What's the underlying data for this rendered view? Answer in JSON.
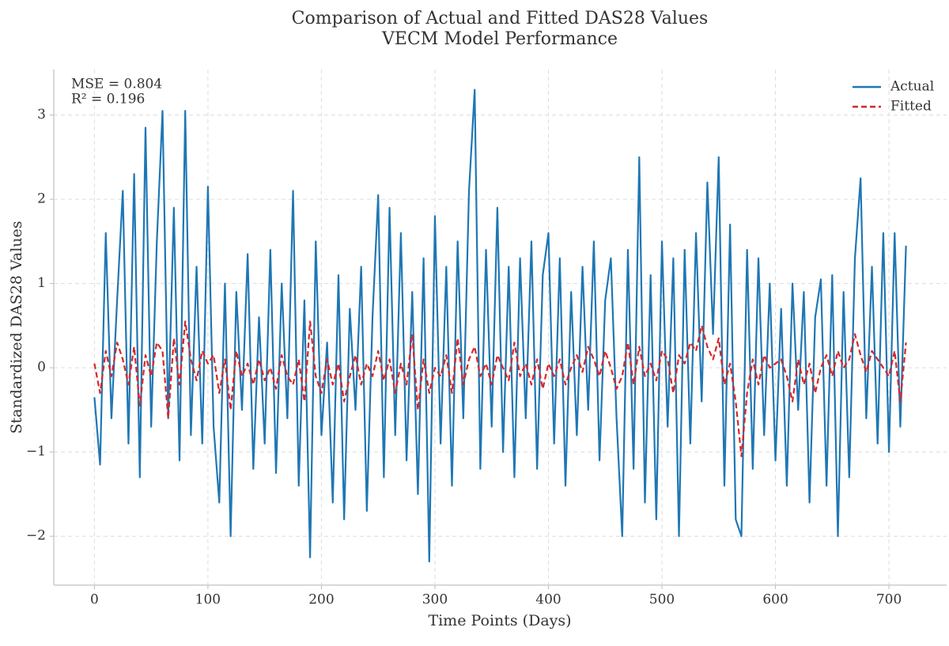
{
  "chart_data": {
    "type": "line",
    "title": "Comparison of Actual and Fitted DAS28 Values",
    "subtitle": "VECM Model Performance",
    "x_label": "Time Points (Days)",
    "y_label": "Standardized DAS28 Values",
    "annotations": [
      "MSE = 0.804",
      "R² = 0.196"
    ],
    "x": [
      0,
      5,
      10,
      15,
      20,
      25,
      30,
      35,
      40,
      45,
      50,
      55,
      60,
      65,
      70,
      75,
      80,
      85,
      90,
      95,
      100,
      105,
      110,
      115,
      120,
      125,
      130,
      135,
      140,
      145,
      150,
      155,
      160,
      165,
      170,
      175,
      180,
      185,
      190,
      195,
      200,
      205,
      210,
      215,
      220,
      225,
      230,
      235,
      240,
      245,
      250,
      255,
      260,
      265,
      270,
      275,
      280,
      285,
      290,
      295,
      300,
      305,
      310,
      315,
      320,
      325,
      330,
      335,
      340,
      345,
      350,
      355,
      360,
      365,
      370,
      375,
      380,
      385,
      390,
      395,
      400,
      405,
      410,
      415,
      420,
      425,
      430,
      435,
      440,
      445,
      450,
      455,
      460,
      465,
      470,
      475,
      480,
      485,
      490,
      495,
      500,
      505,
      510,
      515,
      520,
      525,
      530,
      535,
      540,
      545,
      550,
      555,
      560,
      565,
      570,
      575,
      580,
      585,
      590,
      595,
      600,
      605,
      610,
      615,
      620,
      625,
      630,
      635,
      640,
      645,
      650,
      655,
      660,
      665,
      670,
      675,
      680,
      685,
      690,
      695,
      700,
      705,
      710,
      715
    ],
    "series": [
      {
        "name": "Actual",
        "color": "#1f77b4",
        "dashed": false,
        "values": [
          -0.35,
          -1.15,
          1.6,
          -0.6,
          0.8,
          2.1,
          -0.9,
          2.3,
          -1.3,
          2.85,
          -0.7,
          1.5,
          3.05,
          -0.6,
          1.9,
          -1.1,
          3.05,
          -0.8,
          1.2,
          -0.9,
          2.15,
          -0.7,
          -1.6,
          1.0,
          -2.0,
          0.9,
          -0.5,
          1.35,
          -1.2,
          0.6,
          -0.9,
          1.4,
          -1.25,
          1.0,
          -0.6,
          2.1,
          -1.4,
          0.8,
          -2.25,
          1.5,
          -0.8,
          0.3,
          -1.6,
          1.1,
          -1.8,
          0.7,
          -0.5,
          1.2,
          -1.7,
          0.6,
          2.05,
          -1.3,
          1.9,
          -0.8,
          1.6,
          -1.1,
          0.9,
          -1.5,
          1.3,
          -2.3,
          1.8,
          -0.9,
          1.2,
          -1.4,
          1.5,
          -0.6,
          2.1,
          3.3,
          -1.2,
          1.4,
          -0.7,
          1.9,
          -1.0,
          1.2,
          -1.3,
          1.3,
          -0.6,
          1.5,
          -1.2,
          1.1,
          1.6,
          -0.9,
          1.3,
          -1.4,
          0.9,
          -0.8,
          1.2,
          -0.5,
          1.5,
          -1.1,
          0.8,
          1.3,
          -0.6,
          -2.0,
          1.4,
          -1.2,
          2.5,
          -1.6,
          1.1,
          -1.8,
          1.5,
          -0.7,
          1.3,
          -2.0,
          1.4,
          -0.9,
          1.6,
          -0.4,
          2.2,
          0.4,
          2.5,
          -1.4,
          1.7,
          -1.8,
          -2.0,
          1.4,
          -1.2,
          1.3,
          -0.8,
          1.0,
          -1.1,
          0.7,
          -1.4,
          1.0,
          -0.5,
          0.9,
          -1.6,
          0.6,
          1.05,
          -1.4,
          1.1,
          -2.0,
          0.9,
          -1.3,
          1.3,
          2.25,
          -0.6,
          1.2,
          -0.9,
          1.6,
          -1.0,
          1.6,
          -0.7,
          1.45
        ]
      },
      {
        "name": "Fitted",
        "color": "#d62728",
        "dashed": true,
        "values": [
          0.05,
          -0.3,
          0.2,
          -0.1,
          0.3,
          0.1,
          -0.2,
          0.25,
          -0.45,
          0.15,
          -0.1,
          0.3,
          0.2,
          -0.6,
          0.35,
          -0.2,
          0.55,
          0.1,
          -0.15,
          0.2,
          0.05,
          0.15,
          -0.3,
          0.1,
          -0.5,
          0.2,
          -0.1,
          0.05,
          -0.2,
          0.1,
          -0.15,
          0.0,
          -0.25,
          0.15,
          -0.1,
          -0.2,
          0.1,
          -0.4,
          0.55,
          -0.1,
          -0.3,
          0.1,
          -0.2,
          0.05,
          -0.4,
          -0.1,
          0.15,
          -0.2,
          0.05,
          -0.1,
          0.2,
          -0.15,
          0.1,
          -0.3,
          0.05,
          -0.2,
          0.4,
          -0.5,
          0.1,
          -0.3,
          0.0,
          -0.1,
          0.15,
          -0.3,
          0.35,
          -0.2,
          0.1,
          0.25,
          -0.1,
          0.05,
          -0.2,
          0.15,
          0.0,
          -0.15,
          0.3,
          -0.1,
          0.05,
          -0.2,
          0.1,
          -0.25,
          0.05,
          -0.1,
          0.1,
          -0.2,
          0.0,
          0.15,
          -0.05,
          0.25,
          0.1,
          -0.1,
          0.2,
          0.0,
          -0.25,
          -0.1,
          0.3,
          -0.2,
          0.25,
          -0.1,
          0.05,
          -0.15,
          0.2,
          0.1,
          -0.3,
          0.15,
          0.05,
          0.3,
          0.2,
          0.5,
          0.25,
          0.1,
          0.35,
          -0.2,
          0.05,
          -0.4,
          -1.05,
          -0.3,
          0.1,
          -0.2,
          0.15,
          0.0,
          0.05,
          0.1,
          -0.1,
          -0.4,
          0.1,
          -0.2,
          0.05,
          -0.3,
          0.0,
          0.15,
          -0.1,
          0.2,
          0.0,
          0.1,
          0.4,
          0.15,
          -0.05,
          0.2,
          0.1,
          0.0,
          -0.1,
          0.2,
          -0.4,
          0.3
        ]
      }
    ],
    "xlim": [
      -35.8,
      750.8
    ],
    "ylim": [
      -2.58,
      3.54
    ],
    "xticks": [
      0,
      100,
      200,
      300,
      400,
      500,
      600,
      700
    ],
    "yticks": [
      {
        "value": -2,
        "label": "−2"
      },
      {
        "value": -1,
        "label": "−1"
      },
      0,
      1,
      2,
      3
    ],
    "grid": true,
    "legend": "upper right"
  }
}
